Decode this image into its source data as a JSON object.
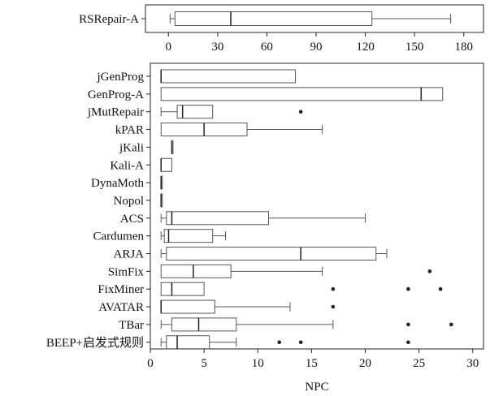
{
  "chart_data": [
    {
      "type": "boxplot",
      "orientation": "horizontal",
      "xlim": [
        -14,
        192
      ],
      "xticks": [
        0,
        30,
        60,
        90,
        120,
        150,
        180
      ],
      "xlabel": "",
      "grid": false,
      "series": [
        {
          "name": "RSRepair-A",
          "whislo": 1,
          "q1": 4,
          "med": 38,
          "q3": 124,
          "whishi": 172,
          "fliers": []
        }
      ]
    },
    {
      "type": "boxplot",
      "orientation": "horizontal",
      "xlim": [
        0,
        31
      ],
      "xticks": [
        0,
        5,
        10,
        15,
        20,
        25,
        30
      ],
      "xlabel": "NPC",
      "grid": false,
      "series": [
        {
          "name": "jGenProg",
          "whislo": 1,
          "q1": 1,
          "med": 1,
          "q3": 13.5,
          "whishi": 13.5,
          "fliers": []
        },
        {
          "name": "GenProg-A",
          "whislo": 1,
          "q1": 1,
          "med": 25.2,
          "q3": 27.2,
          "whishi": 27.2,
          "fliers": []
        },
        {
          "name": "jMutRepair",
          "whislo": 1,
          "q1": 2.5,
          "med": 3,
          "q3": 5.8,
          "whishi": 5.8,
          "fliers": [
            14
          ]
        },
        {
          "name": "kPAR",
          "whislo": 1,
          "q1": 1,
          "med": 5,
          "q3": 9,
          "whishi": 16,
          "fliers": []
        },
        {
          "name": "jKali",
          "whislo": 2,
          "q1": 2,
          "med": 2,
          "q3": 2,
          "whishi": 2,
          "fliers": []
        },
        {
          "name": "Kali-A",
          "whislo": 1,
          "q1": 1,
          "med": 1,
          "q3": 2,
          "whishi": 2,
          "fliers": []
        },
        {
          "name": "DynaMoth",
          "whislo": 1,
          "q1": 1,
          "med": 1,
          "q3": 1,
          "whishi": 1,
          "fliers": []
        },
        {
          "name": "Nopol",
          "whislo": 1,
          "q1": 1,
          "med": 1,
          "q3": 1,
          "whishi": 1,
          "fliers": []
        },
        {
          "name": "ACS",
          "whislo": 1,
          "q1": 1.5,
          "med": 2,
          "q3": 11,
          "whishi": 20,
          "fliers": []
        },
        {
          "name": "Cardumen",
          "whislo": 1,
          "q1": 1.3,
          "med": 1.7,
          "q3": 5.8,
          "whishi": 7,
          "fliers": []
        },
        {
          "name": "ARJA",
          "whislo": 1,
          "q1": 1.5,
          "med": 14,
          "q3": 21,
          "whishi": 22,
          "fliers": []
        },
        {
          "name": "SimFix",
          "whislo": 1,
          "q1": 1,
          "med": 4,
          "q3": 7.5,
          "whishi": 16,
          "fliers": [
            26
          ]
        },
        {
          "name": "FixMiner",
          "whislo": 1,
          "q1": 1,
          "med": 2,
          "q3": 5,
          "whishi": 5,
          "fliers": [
            17,
            24,
            27
          ]
        },
        {
          "name": "AVATAR",
          "whislo": 1,
          "q1": 1,
          "med": 1,
          "q3": 6,
          "whishi": 13,
          "fliers": [
            17
          ]
        },
        {
          "name": "TBar",
          "whislo": 1,
          "q1": 2,
          "med": 4.5,
          "q3": 8,
          "whishi": 17,
          "fliers": [
            24,
            28
          ]
        },
        {
          "name": "BEEP+启发式规则",
          "whislo": 1,
          "q1": 1.5,
          "med": 2.5,
          "q3": 5.5,
          "whishi": 8,
          "fliers": [
            12,
            14,
            24
          ]
        }
      ]
    }
  ]
}
